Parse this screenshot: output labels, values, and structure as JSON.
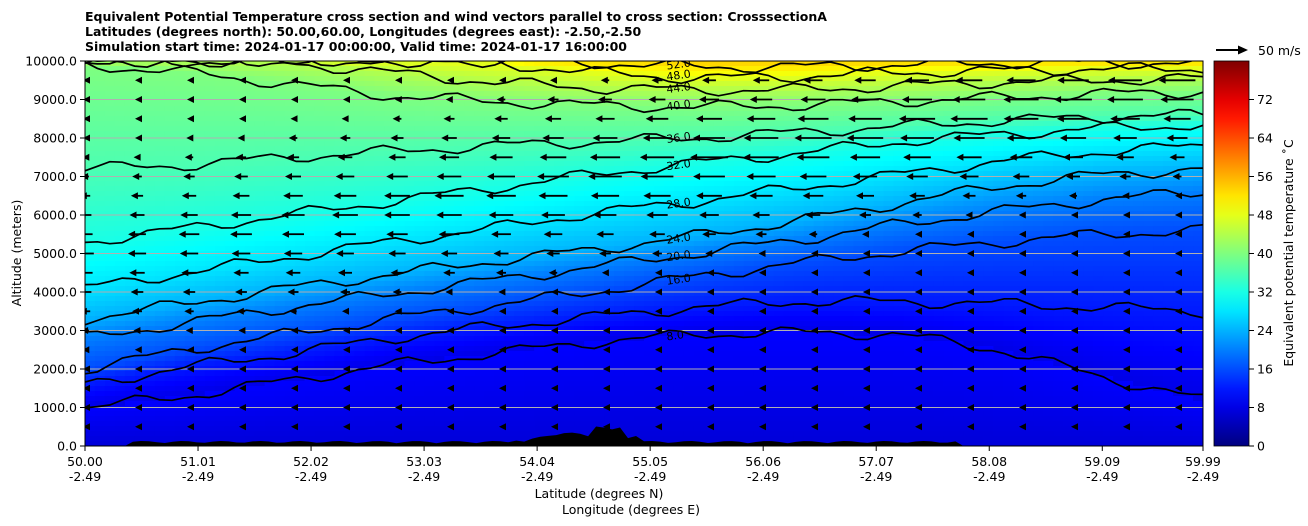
{
  "chart_data": {
    "type": "heatmap",
    "title_lines": [
      "Equivalent Potential Temperature cross section and wind vectors parallel to cross section: CrosssectionA",
      "Latitudes (degrees north): 50.00,60.00, Longitudes (degrees east): -2.50,-2.50",
      "Simulation start time: 2024-01-17 00:00:00, Valid time: 2024-01-17 16:00:00"
    ],
    "xlabel_lines": [
      "Latitude (degrees N)",
      "Longitude (degrees E)"
    ],
    "ylabel": "Altitude (meters)",
    "x_tick_labels": [
      [
        "50.00",
        "-2.49"
      ],
      [
        "51.01",
        "-2.49"
      ],
      [
        "52.02",
        "-2.49"
      ],
      [
        "53.03",
        "-2.49"
      ],
      [
        "54.04",
        "-2.49"
      ],
      [
        "55.05",
        "-2.49"
      ],
      [
        "56.06",
        "-2.49"
      ],
      [
        "57.07",
        "-2.49"
      ],
      [
        "58.08",
        "-2.49"
      ],
      [
        "59.09",
        "-2.49"
      ],
      [
        "59.99",
        "-2.49"
      ]
    ],
    "x_values": [
      50.0,
      51.01,
      52.02,
      53.03,
      54.04,
      55.05,
      56.06,
      57.07,
      58.08,
      59.09,
      59.99
    ],
    "xlim": [
      50.0,
      59.99
    ],
    "y_tick_labels": [
      "0.0",
      "1000.0",
      "2000.0",
      "3000.0",
      "4000.0",
      "5000.0",
      "6000.0",
      "7000.0",
      "8000.0",
      "9000.0",
      "10000.0"
    ],
    "y_values": [
      0,
      1000,
      2000,
      3000,
      4000,
      5000,
      6000,
      7000,
      8000,
      9000,
      10000
    ],
    "ylim": [
      0,
      10000
    ],
    "grid": "horizontal",
    "colorbar": {
      "label": "Equivalent potential temperature ˚C",
      "range": [
        0,
        80
      ],
      "ticks": [
        "0",
        "8",
        "16",
        "24",
        "32",
        "40",
        "48",
        "56",
        "64",
        "72"
      ],
      "tick_values": [
        0,
        8,
        16,
        24,
        32,
        40,
        48,
        56,
        64,
        72
      ],
      "colormap": "jet"
    },
    "wind_key": {
      "label": "50 m/s",
      "value": 50
    },
    "contour_levels": [
      {
        "value": 8,
        "label": "8.0",
        "heights": [
          1000,
          1300,
          1700,
          2100,
          2400,
          2700,
          2900,
          2950,
          2900,
          2500,
          1800,
          1200
        ]
      },
      {
        "value": 12,
        "label": "12.0",
        "heights": [
          1600,
          2050,
          2400,
          2800,
          3100,
          3350,
          3600,
          3750,
          3750,
          3700,
          3600,
          3500
        ]
      },
      {
        "value": 16,
        "label": "16.0",
        "heights": [
          2000,
          2500,
          2900,
          3300,
          3650,
          4000,
          4400,
          4750,
          5050,
          5300,
          5500,
          5600
        ]
      },
      {
        "value": 20,
        "label": "20.0",
        "heights": [
          2800,
          3200,
          3600,
          3950,
          4300,
          4650,
          5000,
          5350,
          5750,
          6100,
          6400,
          6600
        ]
      },
      {
        "value": 24,
        "label": "24.0",
        "heights": [
          3300,
          3700,
          4100,
          4450,
          4800,
          5100,
          5450,
          5850,
          6300,
          6750,
          7050,
          7200
        ]
      },
      {
        "value": 28,
        "label": "28.0",
        "heights": [
          4100,
          4500,
          4900,
          5300,
          5650,
          6050,
          6350,
          6700,
          7050,
          7400,
          7650,
          7800
        ]
      },
      {
        "value": 32,
        "label": "32.0",
        "heights": [
          5300,
          5650,
          6000,
          6350,
          6700,
          7050,
          7350,
          7600,
          7900,
          8100,
          8250,
          8350
        ]
      },
      {
        "value": 36,
        "label": "36.0",
        "heights": [
          7200,
          7300,
          7500,
          7650,
          7800,
          7900,
          8000,
          8150,
          8300,
          8450,
          8550,
          8600
        ]
      },
      {
        "value": 40,
        "label": "40.0",
        "heights": [
          9900,
          9700,
          9400,
          9100,
          8950,
          8850,
          8800,
          8850,
          8950,
          9050,
          9150,
          9200
        ]
      },
      {
        "value": 44,
        "label": "44.0",
        "heights": [
          10000,
          10000,
          9950,
          9700,
          9450,
          9300,
          9250,
          9250,
          9350,
          9450,
          9500,
          9550
        ]
      },
      {
        "value": 48,
        "label": "48.0",
        "heights": [
          10000,
          10000,
          10000,
          10000,
          9950,
          9700,
          9550,
          9600,
          9700,
          9750,
          9800,
          9800
        ]
      },
      {
        "value": 52,
        "label": "52.0",
        "heights": [
          10000,
          10000,
          10000,
          10000,
          10000,
          9950,
          9850,
          9850,
          9900,
          9950,
          9950,
          9950
        ]
      }
    ],
    "contour_label_texts": [
      "52.0",
      "48.0",
      "44.0",
      "36.0",
      "32.0",
      "28.0",
      "28.0",
      "24.0",
      "24.0",
      "20.0",
      "16.0",
      "8.0",
      "16.0",
      "8.0",
      "8.0",
      "8.0",
      "8.0",
      "12.0",
      "50.0",
      "50.0",
      "50.0"
    ]
  },
  "colors": {
    "jet_stops": [
      "#00007f",
      "#0000ff",
      "#007fff",
      "#00ffff",
      "#7fff7f",
      "#ffff00",
      "#ff7f00",
      "#ff0000",
      "#7f0000"
    ],
    "contour": "#000000",
    "vector": "#000000",
    "terrain": "#000000",
    "grid": "#b0b0b0"
  }
}
